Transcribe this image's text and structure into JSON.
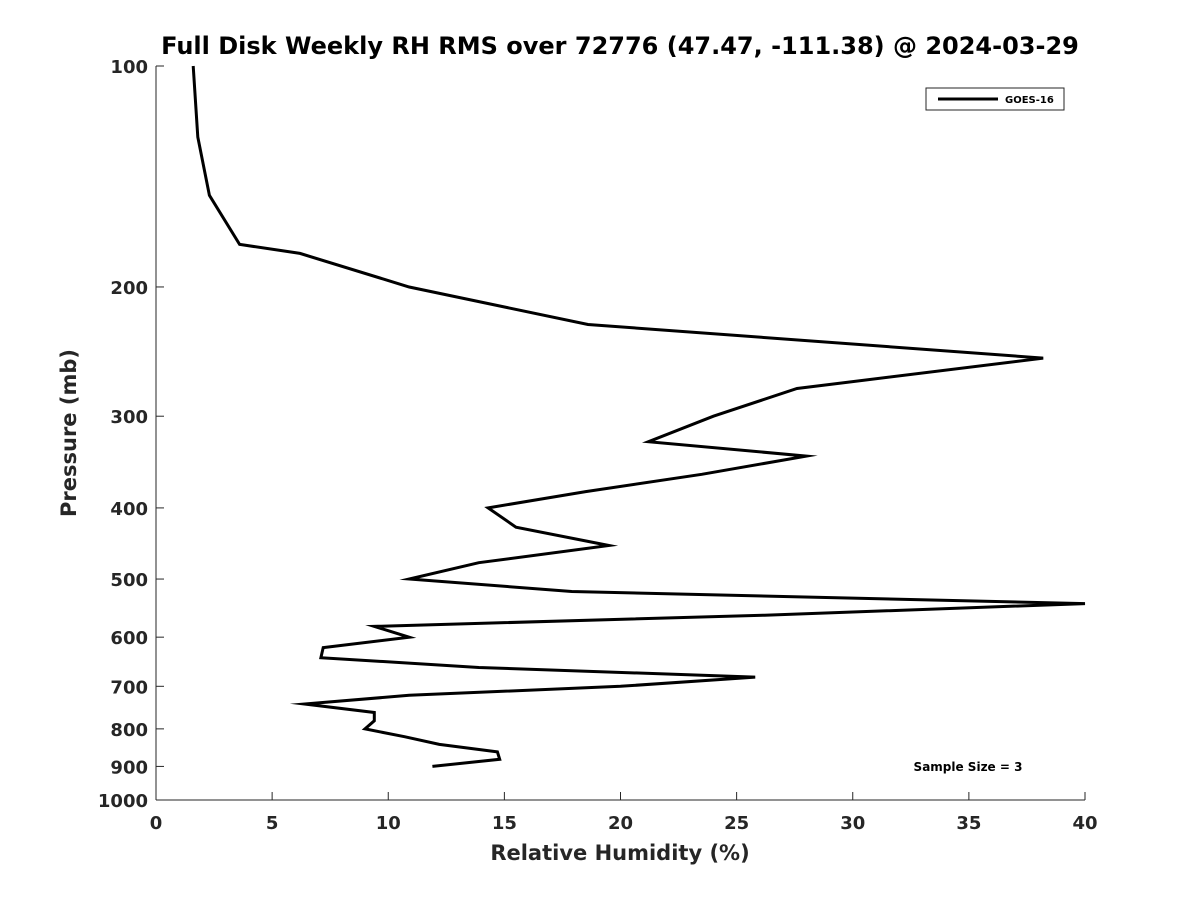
{
  "chart_data": {
    "type": "line",
    "title": "Full Disk Weekly RH RMS over 72776 (47.47, -111.38) @ 2024-03-29",
    "xlabel": "Relative Humidity (%)",
    "ylabel": "Pressure (mb)",
    "xlim": [
      0,
      40
    ],
    "ylim": [
      100,
      1000
    ],
    "y_scale": "log",
    "y_reversed": true,
    "grid": false,
    "legend_position": "top-right",
    "x_ticks": [
      "0",
      "5",
      "10",
      "15",
      "20",
      "25",
      "30",
      "35",
      "40"
    ],
    "y_ticks": [
      "100",
      "200",
      "300",
      "400",
      "500",
      "600",
      "700",
      "800",
      "900",
      "1000"
    ],
    "series": [
      {
        "name": "GOES-16",
        "color": "#000000",
        "points": [
          {
            "x": 1.6,
            "y": 100
          },
          {
            "x": 1.8,
            "y": 125
          },
          {
            "x": 2.3,
            "y": 150
          },
          {
            "x": 3.6,
            "y": 175
          },
          {
            "x": 6.2,
            "y": 180
          },
          {
            "x": 10.9,
            "y": 200
          },
          {
            "x": 18.6,
            "y": 225
          },
          {
            "x": 38.2,
            "y": 250
          },
          {
            "x": 27.6,
            "y": 275
          },
          {
            "x": 24.0,
            "y": 300
          },
          {
            "x": 21.2,
            "y": 325
          },
          {
            "x": 28.0,
            "y": 340
          },
          {
            "x": 23.5,
            "y": 360
          },
          {
            "x": 18.5,
            "y": 380
          },
          {
            "x": 14.3,
            "y": 400
          },
          {
            "x": 15.5,
            "y": 425
          },
          {
            "x": 19.5,
            "y": 450
          },
          {
            "x": 13.9,
            "y": 475
          },
          {
            "x": 10.9,
            "y": 500
          },
          {
            "x": 17.9,
            "y": 520
          },
          {
            "x": 40.0,
            "y": 540
          },
          {
            "x": 26.2,
            "y": 560
          },
          {
            "x": 9.4,
            "y": 580
          },
          {
            "x": 10.9,
            "y": 600
          },
          {
            "x": 7.2,
            "y": 620
          },
          {
            "x": 7.1,
            "y": 640
          },
          {
            "x": 13.9,
            "y": 660
          },
          {
            "x": 25.8,
            "y": 680
          },
          {
            "x": 20.0,
            "y": 700
          },
          {
            "x": 10.9,
            "y": 720
          },
          {
            "x": 6.4,
            "y": 740
          },
          {
            "x": 9.4,
            "y": 760
          },
          {
            "x": 9.4,
            "y": 780
          },
          {
            "x": 9.0,
            "y": 800
          },
          {
            "x": 10.7,
            "y": 820
          },
          {
            "x": 12.2,
            "y": 840
          },
          {
            "x": 14.7,
            "y": 860
          },
          {
            "x": 14.8,
            "y": 880
          },
          {
            "x": 11.9,
            "y": 900
          }
        ]
      }
    ],
    "annotations": [
      "Sample Size = 3"
    ]
  }
}
